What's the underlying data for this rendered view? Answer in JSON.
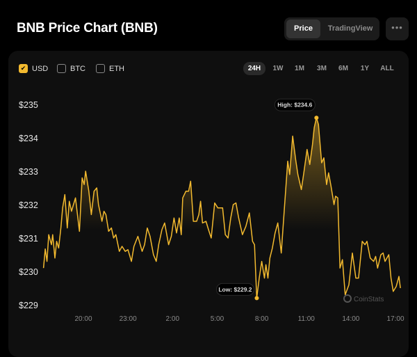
{
  "header": {
    "title": "BNB Price Chart (BNB)"
  },
  "view_toggle": {
    "options": [
      "Price",
      "TradingView"
    ],
    "active": "Price"
  },
  "more_button": {
    "label": "•••"
  },
  "currencies": [
    {
      "label": "USD",
      "checked": true
    },
    {
      "label": "BTC",
      "checked": false
    },
    {
      "label": "ETH",
      "checked": false
    }
  ],
  "ranges": {
    "options": [
      "24H",
      "1W",
      "1M",
      "3M",
      "6M",
      "1Y",
      "ALL"
    ],
    "active": "24H"
  },
  "watermark": "CoinStats",
  "colors": {
    "line": "#f3ba2f",
    "background": "#0f0f0f"
  },
  "chart_data": {
    "type": "area",
    "title": "",
    "xlabel": "",
    "ylabel": "",
    "ylim": [
      229,
      235
    ],
    "y_ticks": [
      "$235",
      "$234",
      "$233",
      "$232",
      "$231",
      "$230",
      "$229"
    ],
    "y_tick_values": [
      235,
      234,
      233,
      232,
      231,
      230,
      229
    ],
    "x_ticks": [
      "20:00",
      "23:00",
      "2:00",
      "5:00",
      "8:00",
      "11:00",
      "14:00",
      "17:00"
    ],
    "grid": false,
    "annotations": {
      "high": {
        "label": "High: $234.6",
        "time": "11:41",
        "value": 234.6
      },
      "low": {
        "label": "Low: $229.2",
        "time": "07:40",
        "value": 229.2
      }
    },
    "series": [
      {
        "points": [
          [
            "17:19",
            230.1
          ],
          [
            "17:26",
            230.67
          ],
          [
            "17:33",
            230.3
          ],
          [
            "17:40",
            231.1
          ],
          [
            "17:51",
            230.8
          ],
          [
            "17:56",
            231.1
          ],
          [
            "18:05",
            230.4
          ],
          [
            "18:12",
            230.9
          ],
          [
            "18:20",
            230.7
          ],
          [
            "18:29",
            231.3
          ],
          [
            "18:36",
            231.9
          ],
          [
            "18:45",
            232.3
          ],
          [
            "18:55",
            231.3
          ],
          [
            "19:03",
            232.1
          ],
          [
            "19:12",
            231.8
          ],
          [
            "19:20",
            232.0
          ],
          [
            "19:28",
            232.2
          ],
          [
            "19:44",
            231.2
          ],
          [
            "19:55",
            232.8
          ],
          [
            "20:03",
            232.6
          ],
          [
            "20:09",
            233.0
          ],
          [
            "20:22",
            232.4
          ],
          [
            "20:32",
            231.7
          ],
          [
            "20:43",
            232.4
          ],
          [
            "20:54",
            232.5
          ],
          [
            "21:01",
            232.0
          ],
          [
            "21:15",
            231.5
          ],
          [
            "21:23",
            231.8
          ],
          [
            "21:31",
            231.7
          ],
          [
            "21:42",
            231.2
          ],
          [
            "21:53",
            231.3
          ],
          [
            "22:02",
            231.0
          ],
          [
            "22:11",
            231.1
          ],
          [
            "22:25",
            230.6
          ],
          [
            "22:36",
            230.75
          ],
          [
            "22:49",
            230.6
          ],
          [
            "23:00",
            230.65
          ],
          [
            "23:14",
            230.3
          ],
          [
            "23:24",
            230.75
          ],
          [
            "23:40",
            231.05
          ],
          [
            "23:57",
            230.6
          ],
          [
            "00:07",
            230.8
          ],
          [
            "00:18",
            231.3
          ],
          [
            "00:29",
            231.05
          ],
          [
            "00:43",
            230.5
          ],
          [
            "00:54",
            230.3
          ],
          [
            "01:04",
            230.8
          ],
          [
            "01:17",
            231.25
          ],
          [
            "01:28",
            231.45
          ],
          [
            "01:44",
            230.8
          ],
          [
            "01:55",
            231.05
          ],
          [
            "02:06",
            231.6
          ],
          [
            "02:16",
            231.15
          ],
          [
            "02:27",
            231.6
          ],
          [
            "02:35",
            231.1
          ],
          [
            "02:41",
            232.2
          ],
          [
            "02:54",
            232.4
          ],
          [
            "03:05",
            232.4
          ],
          [
            "03:13",
            232.7
          ],
          [
            "03:24",
            231.5
          ],
          [
            "03:37",
            231.5
          ],
          [
            "03:46",
            231.7
          ],
          [
            "03:53",
            232.1
          ],
          [
            "04:01",
            231.45
          ],
          [
            "04:15",
            231.5
          ],
          [
            "04:25",
            231.25
          ],
          [
            "04:36",
            231.0
          ],
          [
            "04:50",
            232.05
          ],
          [
            "05:03",
            231.9
          ],
          [
            "05:22",
            231.9
          ],
          [
            "05:33",
            231.1
          ],
          [
            "05:44",
            231.0
          ],
          [
            "05:55",
            231.6
          ],
          [
            "06:05",
            232.0
          ],
          [
            "06:16",
            232.05
          ],
          [
            "06:27",
            231.6
          ],
          [
            "06:42",
            231.1
          ],
          [
            "06:56",
            231.35
          ],
          [
            "07:10",
            231.75
          ],
          [
            "07:23",
            230.9
          ],
          [
            "07:31",
            230.8
          ],
          [
            "07:40",
            229.2
          ],
          [
            "07:50",
            229.8
          ],
          [
            "08:00",
            230.3
          ],
          [
            "08:11",
            229.8
          ],
          [
            "08:17",
            230.2
          ],
          [
            "08:25",
            229.8
          ],
          [
            "08:33",
            230.4
          ],
          [
            "08:43",
            230.7
          ],
          [
            "08:54",
            231.15
          ],
          [
            "09:05",
            231.45
          ],
          [
            "09:19",
            230.55
          ],
          [
            "09:32",
            231.95
          ],
          [
            "09:45",
            233.3
          ],
          [
            "09:53",
            232.9
          ],
          [
            "10:05",
            234.05
          ],
          [
            "10:17",
            233.35
          ],
          [
            "10:26",
            232.9
          ],
          [
            "10:40",
            232.45
          ],
          [
            "10:49",
            232.9
          ],
          [
            "11:03",
            233.65
          ],
          [
            "11:14",
            233.2
          ],
          [
            "11:25",
            233.8
          ],
          [
            "11:32",
            234.3
          ],
          [
            "11:41",
            234.6
          ],
          [
            "11:49",
            234.4
          ],
          [
            "12:02",
            233.25
          ],
          [
            "12:11",
            233.4
          ],
          [
            "12:22",
            232.6
          ],
          [
            "12:30",
            232.95
          ],
          [
            "12:40",
            232.55
          ],
          [
            "12:52",
            232.0
          ],
          [
            "12:58",
            232.25
          ],
          [
            "13:07",
            232.2
          ],
          [
            "13:16",
            230.1
          ],
          [
            "13:26",
            230.35
          ],
          [
            "13:37",
            229.3
          ],
          [
            "13:52",
            229.6
          ],
          [
            "14:06",
            230.55
          ],
          [
            "14:20",
            229.8
          ],
          [
            "14:31",
            229.8
          ],
          [
            "14:46",
            230.9
          ],
          [
            "14:57",
            230.8
          ],
          [
            "15:05",
            230.9
          ],
          [
            "15:18",
            230.4
          ],
          [
            "15:32",
            230.3
          ],
          [
            "15:40",
            230.45
          ],
          [
            "15:48",
            230.1
          ],
          [
            "16:01",
            230.5
          ],
          [
            "16:10",
            230.55
          ],
          [
            "16:18",
            230.3
          ],
          [
            "16:33",
            230.5
          ],
          [
            "16:42",
            229.8
          ],
          [
            "16:51",
            229.4
          ],
          [
            "17:03",
            229.55
          ],
          [
            "17:14",
            229.85
          ],
          [
            "17:20",
            229.5
          ]
        ]
      }
    ]
  }
}
